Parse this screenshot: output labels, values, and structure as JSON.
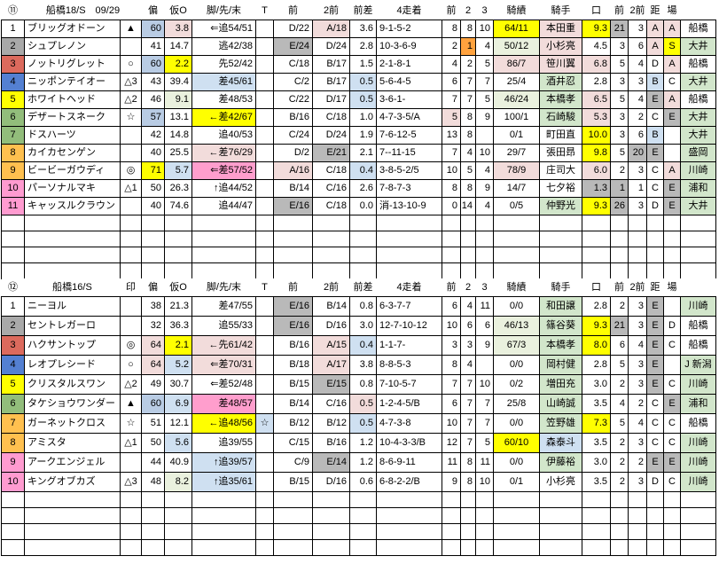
{
  "palette": {
    "frame": {
      "1": "#ffffff",
      "2": "#a9a9a9",
      "3": "#dc6a5d",
      "4": "#5480d2",
      "5": "#ffff00",
      "6": "#92bd7b",
      "7": "#ffc04f",
      "8": "#ff9bd0"
    },
    "cell": {
      "y": "#ffff00",
      "p": "#f2dcdb",
      "P": "#ff9ecd",
      "b": "#cfe0f1",
      "B": "#b9cce4",
      "g": "#b9b9b9",
      "G": "#eaf1de",
      "n": "#d2e6cb",
      "o": "#ffa23e"
    }
  },
  "tables": [
    {
      "circled_no": "⑪",
      "race_label": "船橋18/S",
      "race_date": "09/29",
      "mark_header": "",
      "col_headers": [
        "偏",
        "仮O",
        "脚/先/末",
        "T",
        "前",
        "2前",
        "前差",
        "4走着",
        "前",
        "2",
        "3",
        "騎績",
        "騎手",
        "口",
        "前",
        "2前",
        "距",
        "場",
        ""
      ],
      "frames": [
        "1",
        "2",
        "3",
        "4",
        "5",
        "6",
        "6",
        "7",
        "7",
        "8",
        "8"
      ],
      "rows": [
        [
          "ブリッグオドーン",
          "▲",
          [
            "60",
            "B"
          ],
          [
            "3.8",
            "p"
          ],
          "⇐追54/51",
          "",
          "D/22",
          [
            "A/18",
            "p"
          ],
          "3.6",
          "9-1-5-2",
          "8",
          "8",
          "10",
          [
            "64/11",
            "y"
          ],
          [
            "本田重",
            "p"
          ],
          [
            "9.3",
            "y"
          ],
          [
            "21",
            "g"
          ],
          "3",
          [
            "A",
            "p"
          ],
          [
            "A",
            "p"
          ],
          "船橋"
        ],
        [
          "シュプレノン",
          "",
          "41",
          "14.7",
          "逃42/38",
          "",
          [
            "E/24",
            "g"
          ],
          "D/24",
          "2.8",
          "10-3-6-9",
          "2",
          [
            "1",
            "o"
          ],
          "4",
          [
            "50/12",
            "G"
          ],
          [
            "小杉亮",
            "p"
          ],
          "4.5",
          "3",
          "6",
          [
            "A",
            "p"
          ],
          [
            "S",
            "y"
          ],
          [
            "大井",
            "n"
          ]
        ],
        [
          "ノットリグレット",
          "○",
          [
            "60",
            "B"
          ],
          [
            "2.2",
            "y"
          ],
          "先52/42",
          "",
          "C/18",
          "B/17",
          "1.5",
          "2-1-8-1",
          "4",
          "2",
          "5",
          [
            "86/7",
            "p"
          ],
          [
            "笹川翼",
            "p"
          ],
          [
            "6.8",
            "p"
          ],
          "5",
          "4",
          "D",
          [
            "A",
            "p"
          ],
          "船橋"
        ],
        [
          "ニッポンテイオー",
          "△3",
          "43",
          "39.4",
          [
            "差45/61",
            "b"
          ],
          "",
          "C/2",
          "B/17",
          [
            "0.5",
            "b"
          ],
          "5-6-4-5",
          "6",
          "7",
          "7",
          "25/4",
          [
            "酒井忍",
            "n"
          ],
          "2.8",
          "3",
          "3",
          [
            "B",
            "b"
          ],
          "C",
          [
            "大井",
            "n"
          ]
        ],
        [
          "ホワイトヘッド",
          "△2",
          "46",
          [
            "9.1",
            "G"
          ],
          "差48/53",
          "",
          "C/22",
          "D/17",
          [
            "0.5",
            "b"
          ],
          "3-6-1-",
          "7",
          "7",
          "5",
          [
            "46/24",
            "G"
          ],
          [
            "本橋孝",
            "n"
          ],
          [
            "6.5",
            "p"
          ],
          "5",
          "4",
          [
            "E",
            "g"
          ],
          [
            "A",
            "p"
          ],
          "船橋"
        ],
        [
          "デザートスネーク",
          "☆",
          [
            "57",
            "B"
          ],
          "13.1",
          [
            "←差42/67",
            "y"
          ],
          "",
          "B/16",
          "C/18",
          "1.0",
          "4-7-3-5/A",
          [
            "5",
            "p"
          ],
          "8",
          "9",
          "100/1",
          [
            "石崎駿",
            "n"
          ],
          [
            "5.3",
            "p"
          ],
          "3",
          "2",
          "C",
          [
            "E",
            "g"
          ],
          [
            "大井",
            "n"
          ]
        ],
        [
          "ドスハーツ",
          "",
          "42",
          "14.8",
          "追40/53",
          "",
          "C/24",
          "D/24",
          "1.9",
          "7-6-12-5",
          "13",
          "8",
          "",
          "0/1",
          "町田直",
          [
            "10.0",
            "y"
          ],
          "3",
          "6",
          [
            "B",
            "b"
          ],
          "",
          [
            "大井",
            "n"
          ]
        ],
        [
          "カイカセンゲン",
          "",
          "40",
          "25.5",
          [
            "←差76/29",
            "p"
          ],
          "",
          "D/2",
          [
            "E/21",
            "g"
          ],
          "2.1",
          "7--11-15",
          "7",
          "4",
          "10",
          "29/7",
          "張田昻",
          [
            "9.8",
            "y"
          ],
          "5",
          [
            "20",
            "g"
          ],
          [
            "E",
            "g"
          ],
          "",
          [
            "盛岡",
            "n"
          ]
        ],
        [
          "ビービーガウディ",
          "◎",
          [
            "71",
            "y"
          ],
          [
            "5.7",
            "b"
          ],
          [
            "⇐差57/52",
            "P"
          ],
          "",
          [
            "A/16",
            "p"
          ],
          "C/18",
          [
            "0.4",
            "b"
          ],
          "3-8-5-2/5",
          "10",
          "5",
          "4",
          [
            "78/9",
            "p"
          ],
          "庄司大",
          [
            "6.0",
            "p"
          ],
          "2",
          "3",
          "C",
          [
            "A",
            "p"
          ],
          [
            "川崎",
            "n"
          ]
        ],
        [
          "パーソナルマキ",
          "△1",
          "50",
          "26.3",
          "↑追44/52",
          "",
          "B/14",
          "C/16",
          "2.6",
          "7-8-7-3",
          "8",
          "8",
          "9",
          "14/7",
          "七夕裕",
          [
            "1.3",
            "g"
          ],
          [
            "1",
            "g"
          ],
          "1",
          "C",
          [
            "E",
            "g"
          ],
          [
            "浦和",
            "n"
          ]
        ],
        [
          "キャッスルクラウン",
          "",
          "40",
          "74.6",
          "追44/47",
          "",
          [
            "E/16",
            "g"
          ],
          "C/18",
          "0.0",
          "消-13-10-9",
          "0",
          "14",
          "4",
          "0/5",
          [
            "仲野光",
            "n"
          ],
          [
            "9.3",
            "y"
          ],
          [
            "26",
            "g"
          ],
          "3",
          "D",
          [
            "E",
            "g"
          ],
          [
            "大井",
            "n"
          ]
        ]
      ]
    },
    {
      "circled_no": "⑫",
      "race_label": "船橋16/S",
      "race_date": "",
      "mark_header": "印",
      "col_headers": [
        "偏",
        "仮O",
        "脚/先/末",
        "T",
        "前",
        "2前",
        "前差",
        "4走着",
        "前",
        "2",
        "3",
        "騎績",
        "騎手",
        "口",
        "前",
        "2前",
        "距",
        "場",
        ""
      ],
      "frames": [
        "1",
        "2",
        "3",
        "4",
        "5",
        "6",
        "7",
        "7",
        "8",
        "8"
      ],
      "rows": [
        [
          "ニーヨル",
          "",
          "38",
          "21.3",
          "差47/55",
          "",
          [
            "E/16",
            "g"
          ],
          "B/14",
          "0.8",
          "6-3-7-7",
          "6",
          "4",
          "11",
          "0/0",
          [
            "和田譲",
            "n"
          ],
          "2.8",
          "2",
          "3",
          [
            "E",
            "g"
          ],
          "",
          [
            "川崎",
            "n"
          ]
        ],
        [
          "セントレガーロ",
          "",
          "32",
          "36.3",
          "追55/33",
          "",
          [
            "E/16",
            "g"
          ],
          "D/16",
          "3.0",
          "12-7-10-12",
          "10",
          "6",
          "6",
          [
            "46/13",
            "G"
          ],
          [
            "篠谷葵",
            "n"
          ],
          [
            "9.3",
            "y"
          ],
          [
            "21",
            "g"
          ],
          "3",
          [
            "E",
            "g"
          ],
          "D",
          "船橋"
        ],
        [
          "ハクサントップ",
          "◎",
          [
            "64",
            "p"
          ],
          [
            "2.1",
            "y"
          ],
          [
            "←先61/42",
            "p"
          ],
          "",
          "B/16",
          [
            "A/15",
            "p"
          ],
          [
            "0.4",
            "b"
          ],
          "1-1-7-",
          "3",
          "3",
          "9",
          [
            "67/3",
            "G"
          ],
          [
            "本橋孝",
            "n"
          ],
          [
            "8.0",
            "y"
          ],
          "6",
          "4",
          [
            "E",
            "g"
          ],
          "C",
          "船橋"
        ],
        [
          "レオプレシード",
          "○",
          [
            "64",
            "p"
          ],
          [
            "5.2",
            "b"
          ],
          [
            "⇐差70/31",
            "p"
          ],
          "",
          "B/18",
          [
            "A/17",
            "p"
          ],
          "3.8",
          "8-8-5-3",
          "8",
          "4",
          "",
          "0/0",
          [
            "岡村健",
            "n"
          ],
          "2.8",
          "5",
          "3",
          [
            "E",
            "g"
          ],
          "",
          [
            "J 新潟",
            "n"
          ]
        ],
        [
          "クリスタルスワン",
          "△2",
          "49",
          "30.7",
          "⇐差52/48",
          "",
          "B/15",
          [
            "E/15",
            "g"
          ],
          "0.8",
          "7-10-5-7",
          "7",
          "7",
          "10",
          "0/2",
          [
            "増田充",
            "n"
          ],
          "3.0",
          "2",
          "3",
          [
            "E",
            "g"
          ],
          "C",
          [
            "川崎",
            "n"
          ]
        ],
        [
          "タケショウワンダー",
          "▲",
          [
            "60",
            "B"
          ],
          [
            "6.9",
            "b"
          ],
          [
            "差48/57",
            "P"
          ],
          "",
          "B/14",
          "C/16",
          [
            "0.5",
            "p"
          ],
          "1-2-4-5/B",
          "6",
          "7",
          "7",
          "25/8",
          [
            "山崎誠",
            "n"
          ],
          "3.5",
          "4",
          "2",
          "C",
          [
            "E",
            "g"
          ],
          [
            "浦和",
            "n"
          ]
        ],
        [
          "ガーネットクロス",
          "☆",
          "51",
          "12.1",
          [
            "←追48/56",
            "y"
          ],
          [
            "☆",
            "b"
          ],
          "B/12",
          "B/12",
          [
            "0.5",
            "b"
          ],
          "4-7-3-8",
          "10",
          "7",
          "7",
          "0/0",
          [
            "笠野雄",
            "n"
          ],
          [
            "7.3",
            "y"
          ],
          "5",
          "4",
          "C",
          "C",
          "船橋"
        ],
        [
          "アミスタ",
          "△1",
          "50",
          [
            "5.6",
            "b"
          ],
          "追39/55",
          "",
          "C/15",
          "B/16",
          "1.2",
          "10-4-3-3/B",
          "12",
          "7",
          "5",
          [
            "60/10",
            "y"
          ],
          [
            "森泰斗",
            "b"
          ],
          "3.5",
          "2",
          "3",
          "C",
          "C",
          [
            "川崎",
            "n"
          ]
        ],
        [
          "アークエンジェル",
          "",
          "44",
          "40.9",
          [
            "↑追39/57",
            "b"
          ],
          "",
          "C/9",
          [
            "E/14",
            "g"
          ],
          "1.2",
          "8-6-9-11",
          "11",
          "8",
          "11",
          "0/0",
          [
            "伊藤裕",
            "n"
          ],
          "3.0",
          "2",
          "2",
          [
            "E",
            "g"
          ],
          [
            "E",
            "g"
          ],
          [
            "川崎",
            "n"
          ]
        ],
        [
          "キングオブカズ",
          "△3",
          "48",
          [
            "8.2",
            "G"
          ],
          [
            "↑追35/61",
            "b"
          ],
          "",
          "B/15",
          "D/16",
          "0.6",
          "6-8-2-2/B",
          "9",
          "8",
          "10",
          "0/1",
          "小杉亮",
          "3.5",
          "2",
          "3",
          "D",
          "C",
          [
            "川崎",
            "n"
          ]
        ]
      ]
    }
  ]
}
